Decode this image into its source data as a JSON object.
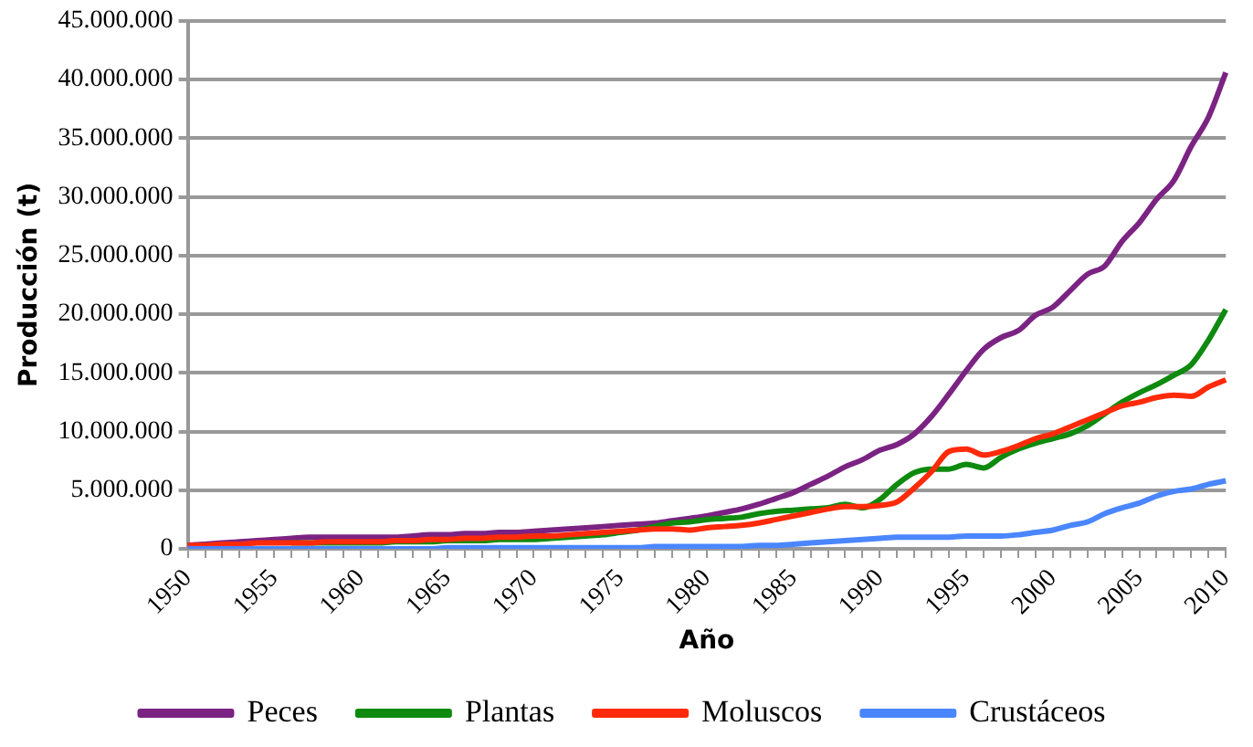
{
  "chart_data": {
    "type": "line",
    "xlabel": "Año",
    "ylabel": "Producción (t)",
    "categories": [
      "1950",
      null,
      null,
      null,
      null,
      "1955",
      null,
      null,
      null,
      null,
      "1960",
      null,
      null,
      null,
      null,
      "1965",
      null,
      null,
      null,
      null,
      "1970",
      null,
      null,
      null,
      null,
      "1975",
      null,
      null,
      null,
      null,
      "1980",
      null,
      null,
      null,
      null,
      "1985",
      null,
      null,
      null,
      null,
      "1990",
      null,
      null,
      null,
      null,
      "1995",
      null,
      null,
      null,
      null,
      "2000",
      null,
      null,
      null,
      null,
      "2005",
      null,
      null,
      null,
      null,
      "2010"
    ],
    "series": [
      {
        "name": "Peces",
        "color": "#7b2383",
        "values": [
          300000,
          400000,
          500000,
          600000,
          700000,
          800000,
          900000,
          1000000,
          1000000,
          1000000,
          1000000,
          1000000,
          1000000,
          1100000,
          1200000,
          1200000,
          1300000,
          1300000,
          1400000,
          1400000,
          1500000,
          1600000,
          1700000,
          1800000,
          1900000,
          2000000,
          2100000,
          2200000,
          2400000,
          2600000,
          2800000,
          3100000,
          3400000,
          3800000,
          4300000,
          4800000,
          5500000,
          6200000,
          7000000,
          7600000,
          8400000,
          8900000,
          9800000,
          11300000,
          13200000,
          15200000,
          17000000,
          18000000,
          18600000,
          19900000,
          20600000,
          22000000,
          23400000,
          24100000,
          26200000,
          27800000,
          29800000,
          31400000,
          34300000,
          36800000,
          40600000
        ]
      },
      {
        "name": "Plantas",
        "color": "#0e8a0e",
        "values": [
          null,
          null,
          null,
          null,
          null,
          null,
          500000,
          500000,
          500000,
          500000,
          500000,
          500000,
          600000,
          600000,
          600000,
          700000,
          700000,
          700000,
          800000,
          800000,
          800000,
          900000,
          1000000,
          1100000,
          1200000,
          1400000,
          1600000,
          1900000,
          2200000,
          2300000,
          2500000,
          2600000,
          2700000,
          3000000,
          3200000,
          3300000,
          3400000,
          3500000,
          3800000,
          3500000,
          4200000,
          5500000,
          6500000,
          6800000,
          6800000,
          7200000,
          6900000,
          7800000,
          8500000,
          9000000,
          9400000,
          9800000,
          10500000,
          11500000,
          12500000,
          13300000,
          14000000,
          14800000,
          15700000,
          17800000,
          20400000
        ]
      },
      {
        "name": "Moluscos",
        "color": "#ff2a0a",
        "values": [
          300000,
          300000,
          400000,
          400000,
          500000,
          500000,
          500000,
          500000,
          600000,
          600000,
          600000,
          600000,
          700000,
          700000,
          800000,
          800000,
          900000,
          900000,
          1000000,
          1000000,
          1100000,
          1100000,
          1200000,
          1300000,
          1400000,
          1500000,
          1600000,
          1700000,
          1700000,
          1600000,
          1800000,
          1900000,
          2000000,
          2200000,
          2500000,
          2800000,
          3100000,
          3400000,
          3600000,
          3600000,
          3700000,
          4000000,
          5200000,
          6600000,
          8300000,
          8500000,
          8000000,
          8300000,
          8800000,
          9400000,
          9800000,
          10400000,
          11000000,
          11600000,
          12200000,
          12500000,
          12900000,
          13100000,
          13000000,
          13800000,
          14400000
        ]
      },
      {
        "name": "Crustáceos",
        "color": "#4a86ff",
        "values": [
          0,
          0,
          0,
          0,
          0,
          0,
          0,
          0,
          0,
          0,
          0,
          0,
          0,
          0,
          0,
          100000,
          100000,
          100000,
          100000,
          100000,
          100000,
          100000,
          100000,
          100000,
          100000,
          100000,
          100000,
          200000,
          200000,
          200000,
          200000,
          200000,
          200000,
          300000,
          300000,
          400000,
          500000,
          600000,
          700000,
          800000,
          900000,
          1000000,
          1000000,
          1000000,
          1000000,
          1100000,
          1100000,
          1100000,
          1200000,
          1400000,
          1600000,
          2000000,
          2300000,
          3000000,
          3500000,
          3900000,
          4500000,
          4900000,
          5100000,
          5500000,
          5800000
        ]
      }
    ],
    "ylim": [
      0,
      45000000
    ],
    "yticks": [
      0,
      {
        "value": 5000000,
        "label": "5.000.000"
      },
      {
        "value": 10000000,
        "label": "10.000.000"
      },
      {
        "value": 15000000,
        "label": "15.000.000"
      },
      {
        "value": 20000000,
        "label": "20.000.000"
      },
      {
        "value": 25000000,
        "label": "25.000.000"
      },
      {
        "value": 30000000,
        "label": "30.000.000"
      },
      {
        "value": 35000000,
        "label": "35.000.000"
      },
      {
        "value": 40000000,
        "label": "40.000.000"
      },
      {
        "value": 45000000,
        "label": "45.000.000"
      }
    ],
    "grid": "y",
    "legend": "bottom",
    "marker": "none",
    "line_style": "solid"
  }
}
